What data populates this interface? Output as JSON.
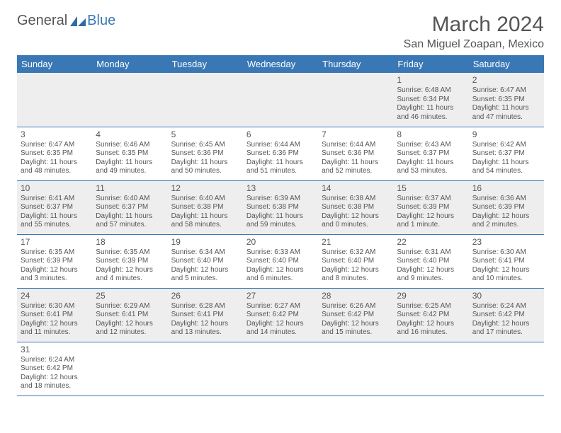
{
  "brand": {
    "general": "General",
    "blue": "Blue"
  },
  "title": "March 2024",
  "location": "San Miguel Zoapan, Mexico",
  "colors": {
    "header_bg": "#3a78b5",
    "header_text": "#ffffff",
    "body_text": "#555555",
    "row_alt_bg": "#eeeeee",
    "row_bg": "#ffffff",
    "border": "#3a78b5"
  },
  "dayHeaders": [
    "Sunday",
    "Monday",
    "Tuesday",
    "Wednesday",
    "Thursday",
    "Friday",
    "Saturday"
  ],
  "weeks": [
    [
      null,
      null,
      null,
      null,
      null,
      {
        "n": "1",
        "sunrise": "Sunrise: 6:48 AM",
        "sunset": "Sunset: 6:34 PM",
        "daylight": "Daylight: 11 hours and 46 minutes."
      },
      {
        "n": "2",
        "sunrise": "Sunrise: 6:47 AM",
        "sunset": "Sunset: 6:35 PM",
        "daylight": "Daylight: 11 hours and 47 minutes."
      }
    ],
    [
      {
        "n": "3",
        "sunrise": "Sunrise: 6:47 AM",
        "sunset": "Sunset: 6:35 PM",
        "daylight": "Daylight: 11 hours and 48 minutes."
      },
      {
        "n": "4",
        "sunrise": "Sunrise: 6:46 AM",
        "sunset": "Sunset: 6:35 PM",
        "daylight": "Daylight: 11 hours and 49 minutes."
      },
      {
        "n": "5",
        "sunrise": "Sunrise: 6:45 AM",
        "sunset": "Sunset: 6:36 PM",
        "daylight": "Daylight: 11 hours and 50 minutes."
      },
      {
        "n": "6",
        "sunrise": "Sunrise: 6:44 AM",
        "sunset": "Sunset: 6:36 PM",
        "daylight": "Daylight: 11 hours and 51 minutes."
      },
      {
        "n": "7",
        "sunrise": "Sunrise: 6:44 AM",
        "sunset": "Sunset: 6:36 PM",
        "daylight": "Daylight: 11 hours and 52 minutes."
      },
      {
        "n": "8",
        "sunrise": "Sunrise: 6:43 AM",
        "sunset": "Sunset: 6:37 PM",
        "daylight": "Daylight: 11 hours and 53 minutes."
      },
      {
        "n": "9",
        "sunrise": "Sunrise: 6:42 AM",
        "sunset": "Sunset: 6:37 PM",
        "daylight": "Daylight: 11 hours and 54 minutes."
      }
    ],
    [
      {
        "n": "10",
        "sunrise": "Sunrise: 6:41 AM",
        "sunset": "Sunset: 6:37 PM",
        "daylight": "Daylight: 11 hours and 55 minutes."
      },
      {
        "n": "11",
        "sunrise": "Sunrise: 6:40 AM",
        "sunset": "Sunset: 6:37 PM",
        "daylight": "Daylight: 11 hours and 57 minutes."
      },
      {
        "n": "12",
        "sunrise": "Sunrise: 6:40 AM",
        "sunset": "Sunset: 6:38 PM",
        "daylight": "Daylight: 11 hours and 58 minutes."
      },
      {
        "n": "13",
        "sunrise": "Sunrise: 6:39 AM",
        "sunset": "Sunset: 6:38 PM",
        "daylight": "Daylight: 11 hours and 59 minutes."
      },
      {
        "n": "14",
        "sunrise": "Sunrise: 6:38 AM",
        "sunset": "Sunset: 6:38 PM",
        "daylight": "Daylight: 12 hours and 0 minutes."
      },
      {
        "n": "15",
        "sunrise": "Sunrise: 6:37 AM",
        "sunset": "Sunset: 6:39 PM",
        "daylight": "Daylight: 12 hours and 1 minute."
      },
      {
        "n": "16",
        "sunrise": "Sunrise: 6:36 AM",
        "sunset": "Sunset: 6:39 PM",
        "daylight": "Daylight: 12 hours and 2 minutes."
      }
    ],
    [
      {
        "n": "17",
        "sunrise": "Sunrise: 6:35 AM",
        "sunset": "Sunset: 6:39 PM",
        "daylight": "Daylight: 12 hours and 3 minutes."
      },
      {
        "n": "18",
        "sunrise": "Sunrise: 6:35 AM",
        "sunset": "Sunset: 6:39 PM",
        "daylight": "Daylight: 12 hours and 4 minutes."
      },
      {
        "n": "19",
        "sunrise": "Sunrise: 6:34 AM",
        "sunset": "Sunset: 6:40 PM",
        "daylight": "Daylight: 12 hours and 5 minutes."
      },
      {
        "n": "20",
        "sunrise": "Sunrise: 6:33 AM",
        "sunset": "Sunset: 6:40 PM",
        "daylight": "Daylight: 12 hours and 6 minutes."
      },
      {
        "n": "21",
        "sunrise": "Sunrise: 6:32 AM",
        "sunset": "Sunset: 6:40 PM",
        "daylight": "Daylight: 12 hours and 8 minutes."
      },
      {
        "n": "22",
        "sunrise": "Sunrise: 6:31 AM",
        "sunset": "Sunset: 6:40 PM",
        "daylight": "Daylight: 12 hours and 9 minutes."
      },
      {
        "n": "23",
        "sunrise": "Sunrise: 6:30 AM",
        "sunset": "Sunset: 6:41 PM",
        "daylight": "Daylight: 12 hours and 10 minutes."
      }
    ],
    [
      {
        "n": "24",
        "sunrise": "Sunrise: 6:30 AM",
        "sunset": "Sunset: 6:41 PM",
        "daylight": "Daylight: 12 hours and 11 minutes."
      },
      {
        "n": "25",
        "sunrise": "Sunrise: 6:29 AM",
        "sunset": "Sunset: 6:41 PM",
        "daylight": "Daylight: 12 hours and 12 minutes."
      },
      {
        "n": "26",
        "sunrise": "Sunrise: 6:28 AM",
        "sunset": "Sunset: 6:41 PM",
        "daylight": "Daylight: 12 hours and 13 minutes."
      },
      {
        "n": "27",
        "sunrise": "Sunrise: 6:27 AM",
        "sunset": "Sunset: 6:42 PM",
        "daylight": "Daylight: 12 hours and 14 minutes."
      },
      {
        "n": "28",
        "sunrise": "Sunrise: 6:26 AM",
        "sunset": "Sunset: 6:42 PM",
        "daylight": "Daylight: 12 hours and 15 minutes."
      },
      {
        "n": "29",
        "sunrise": "Sunrise: 6:25 AM",
        "sunset": "Sunset: 6:42 PM",
        "daylight": "Daylight: 12 hours and 16 minutes."
      },
      {
        "n": "30",
        "sunrise": "Sunrise: 6:24 AM",
        "sunset": "Sunset: 6:42 PM",
        "daylight": "Daylight: 12 hours and 17 minutes."
      }
    ],
    [
      {
        "n": "31",
        "sunrise": "Sunrise: 6:24 AM",
        "sunset": "Sunset: 6:42 PM",
        "daylight": "Daylight: 12 hours and 18 minutes."
      },
      null,
      null,
      null,
      null,
      null,
      null
    ]
  ]
}
